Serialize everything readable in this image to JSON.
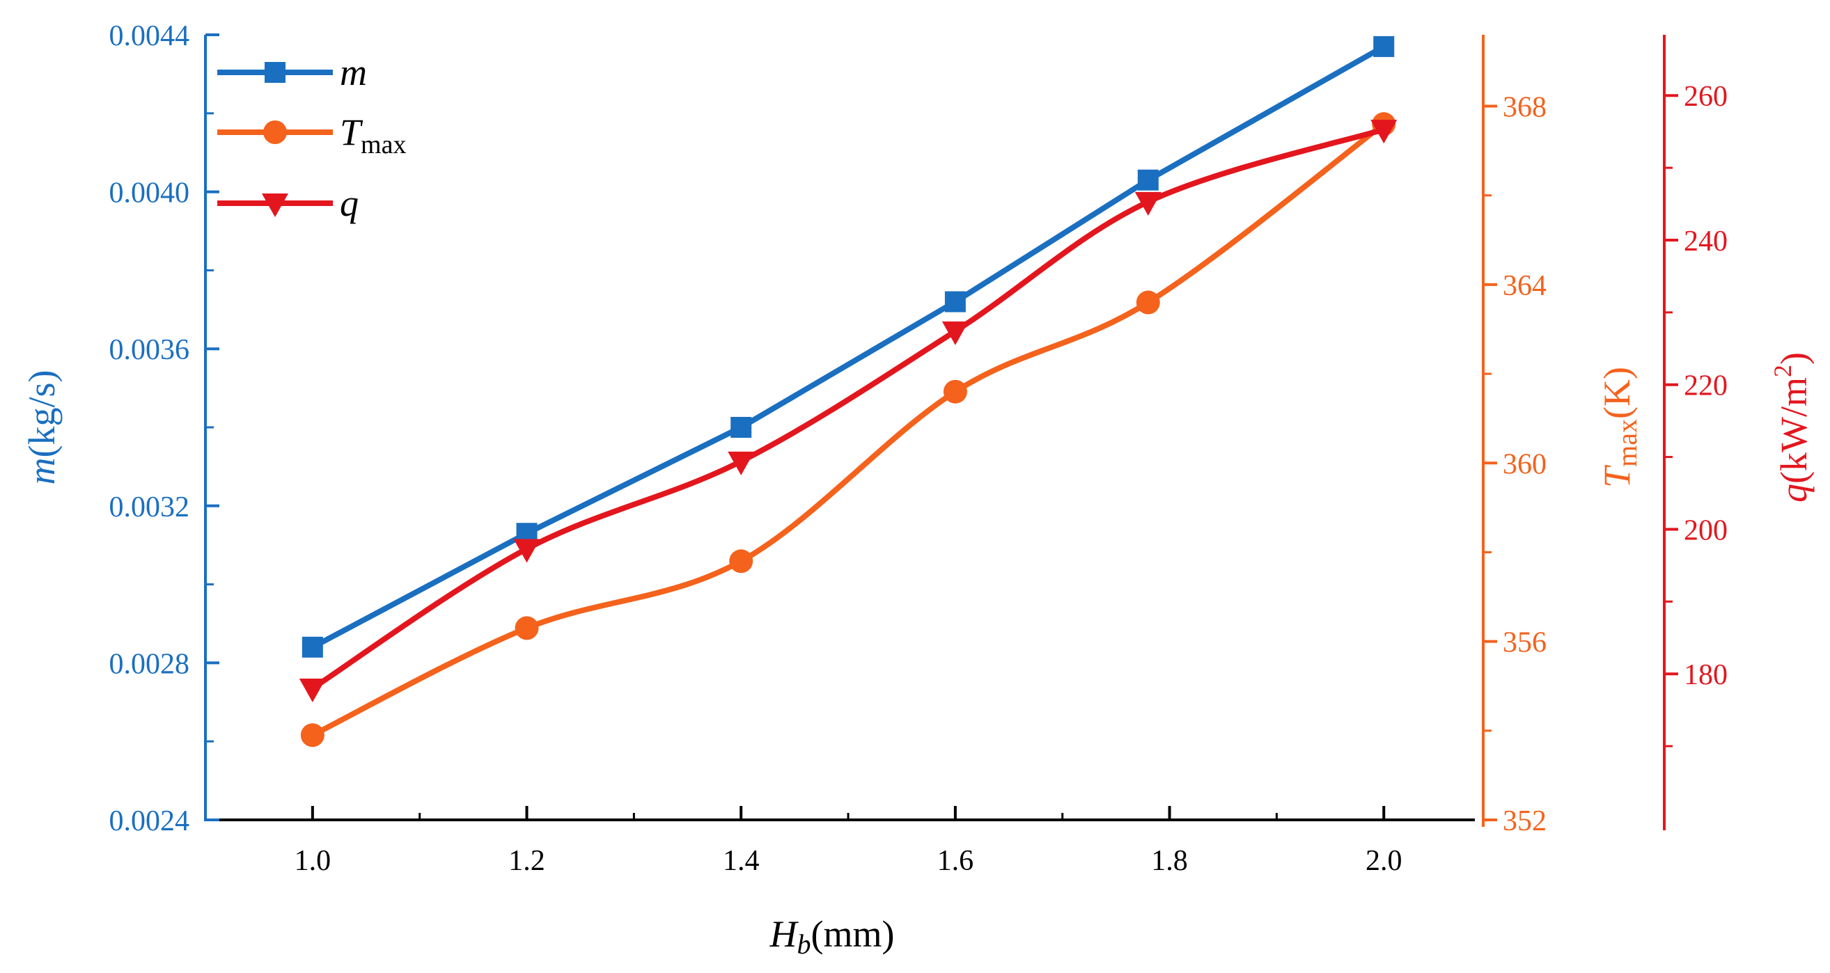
{
  "chart_data": {
    "type": "line",
    "x": [
      1.0,
      1.2,
      1.4,
      1.6,
      1.78,
      2.0
    ],
    "x_ticks": [
      "1.0",
      "1.2",
      "1.4",
      "1.6",
      "1.8",
      "2.0"
    ],
    "xlabel": {
      "main": "H",
      "sub": "b",
      "unit": "(mm)"
    },
    "xlim": [
      0.9,
      2.085
    ],
    "series": [
      {
        "name": "m",
        "legend": {
          "main": "m",
          "sub": ""
        },
        "color": "#1a6fc0",
        "marker": "square",
        "axis": "m",
        "smooth": false,
        "values": [
          0.00284,
          0.00313,
          0.0034,
          0.00372,
          0.00403,
          0.00437
        ]
      },
      {
        "name": "Tmax",
        "legend": {
          "main": "T",
          "sub": "max"
        },
        "color": "#f4621c",
        "marker": "circle",
        "axis": "T",
        "smooth": true,
        "values": [
          353.9,
          356.3,
          357.8,
          361.6,
          363.6,
          367.6
        ]
      },
      {
        "name": "q",
        "legend": {
          "main": "q",
          "sub": ""
        },
        "color": "#e3161e",
        "marker": "triangle-down",
        "axis": "q",
        "smooth": true,
        "values": [
          178.0,
          197.3,
          209.4,
          227.4,
          245.3,
          255.3
        ]
      }
    ],
    "y_axes": {
      "m": {
        "label": {
          "main": "m",
          "sub": "",
          "unit": "(kg/s)"
        },
        "range": [
          0.0024,
          0.0044
        ],
        "ticks": [
          "0.0024",
          "0.0028",
          "0.0032",
          "0.0036",
          "0.0040",
          "0.0044"
        ],
        "color": "#1a6fc0",
        "position": "left"
      },
      "T": {
        "label": {
          "main": "T",
          "sub": "max",
          "unit": "(K)"
        },
        "range": [
          352,
          369.6
        ],
        "ticks": [
          "352",
          "356",
          "360",
          "364",
          "368"
        ],
        "color": "#f4621c",
        "position": "right"
      },
      "q": {
        "label": {
          "main": "q",
          "sub": "",
          "unit": "(kW/m",
          "sup": "2",
          "close": ")"
        },
        "range": [
          159.8,
          268.4
        ],
        "ticks": [
          "180",
          "200",
          "220",
          "240",
          "260"
        ],
        "color": "#e3161e",
        "position": "right-offset"
      }
    },
    "legend_position": "top-left",
    "grid": false
  }
}
